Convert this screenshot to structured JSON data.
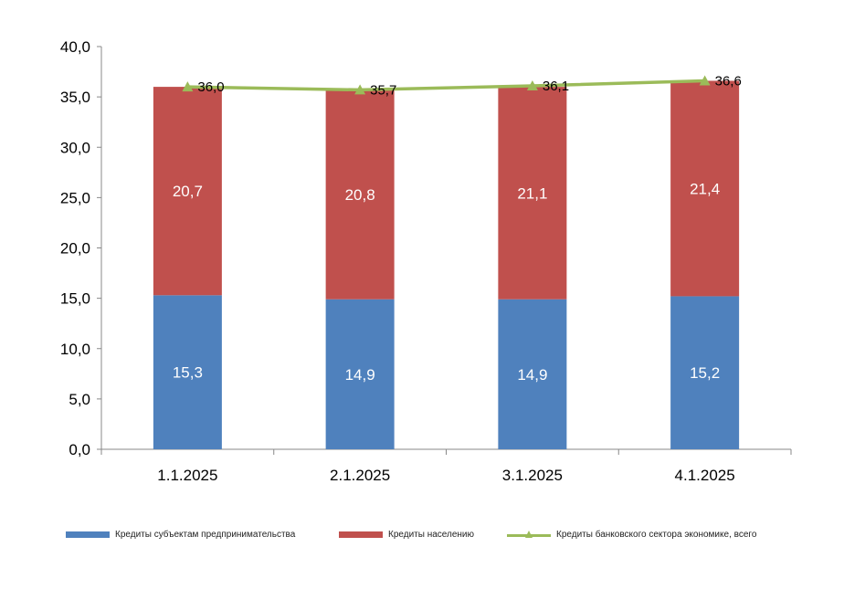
{
  "chart_data": {
    "type": "bar",
    "stacked": true,
    "categories": [
      "1.1.2025",
      "2.1.2025",
      "3.1.2025",
      "4.1.2025"
    ],
    "series": [
      {
        "name": "Кредиты субъектам предпринимательства",
        "type": "bar",
        "color": "#4f81bd",
        "values": [
          15.3,
          14.9,
          14.9,
          15.2
        ],
        "labels": [
          "15,3",
          "14,9",
          "14,9",
          "15,2"
        ]
      },
      {
        "name": "Кредиты населению",
        "type": "bar",
        "color": "#c0504d",
        "values": [
          20.7,
          20.8,
          21.1,
          21.4
        ],
        "labels": [
          "20,7",
          "20,8",
          "21,1",
          "21,4"
        ]
      },
      {
        "name": "Кредиты банковского сектора экономике, всего",
        "type": "line",
        "color": "#9bbb59",
        "values": [
          36.0,
          35.7,
          36.1,
          36.6
        ],
        "labels": [
          "36,0",
          "35,7",
          "36,1",
          "36,6"
        ]
      }
    ],
    "ylim": [
      0,
      40
    ],
    "yticks": [
      0,
      5,
      10,
      15,
      20,
      25,
      30,
      35,
      40
    ],
    "ytick_labels": [
      "0,0",
      "5,0",
      "10,0",
      "15,0",
      "20,0",
      "25,0",
      "30,0",
      "35,0",
      "40,0"
    ],
    "grid": false,
    "legend_position": "bottom",
    "title": "",
    "xlabel": "",
    "ylabel": ""
  }
}
